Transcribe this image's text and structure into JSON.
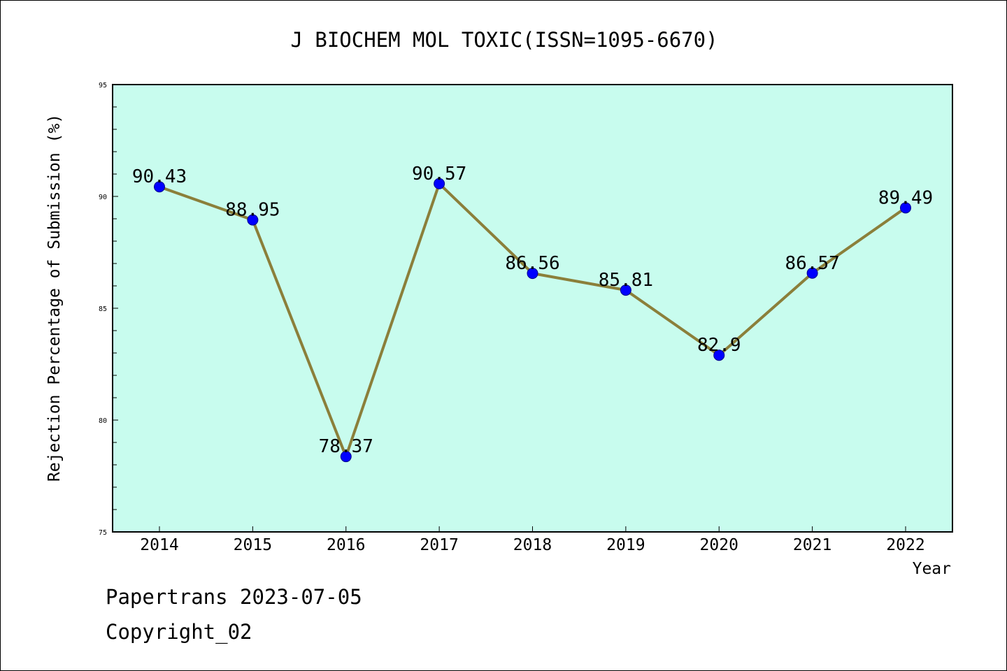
{
  "footer": {
    "line1": "Papertrans 2023-07-05",
    "line2": "Copyright_02"
  },
  "chart_data": {
    "type": "line",
    "title": "J BIOCHEM MOL TOXIC(ISSN=1095-6670)",
    "xlabel": "Year",
    "ylabel": "Rejection Percentage of Submission (%)",
    "categories": [
      "2014",
      "2015",
      "2016",
      "2017",
      "2018",
      "2019",
      "2020",
      "2021",
      "2022"
    ],
    "values": [
      90.43,
      88.95,
      78.37,
      90.57,
      86.56,
      85.81,
      82.9,
      86.57,
      89.49
    ],
    "data_labels": [
      "90.43",
      "88.95",
      "78.37",
      "90.57",
      "86.56",
      "85.81",
      "82.9",
      "86.57",
      "89.49"
    ],
    "ylim": [
      75,
      95
    ],
    "yticks": [
      75,
      80,
      85,
      90,
      95
    ],
    "grid": false,
    "legend": "none",
    "colors": {
      "plot_background": "#c8fcee",
      "line": "#8b7f3a",
      "marker": "#0000ff"
    }
  }
}
